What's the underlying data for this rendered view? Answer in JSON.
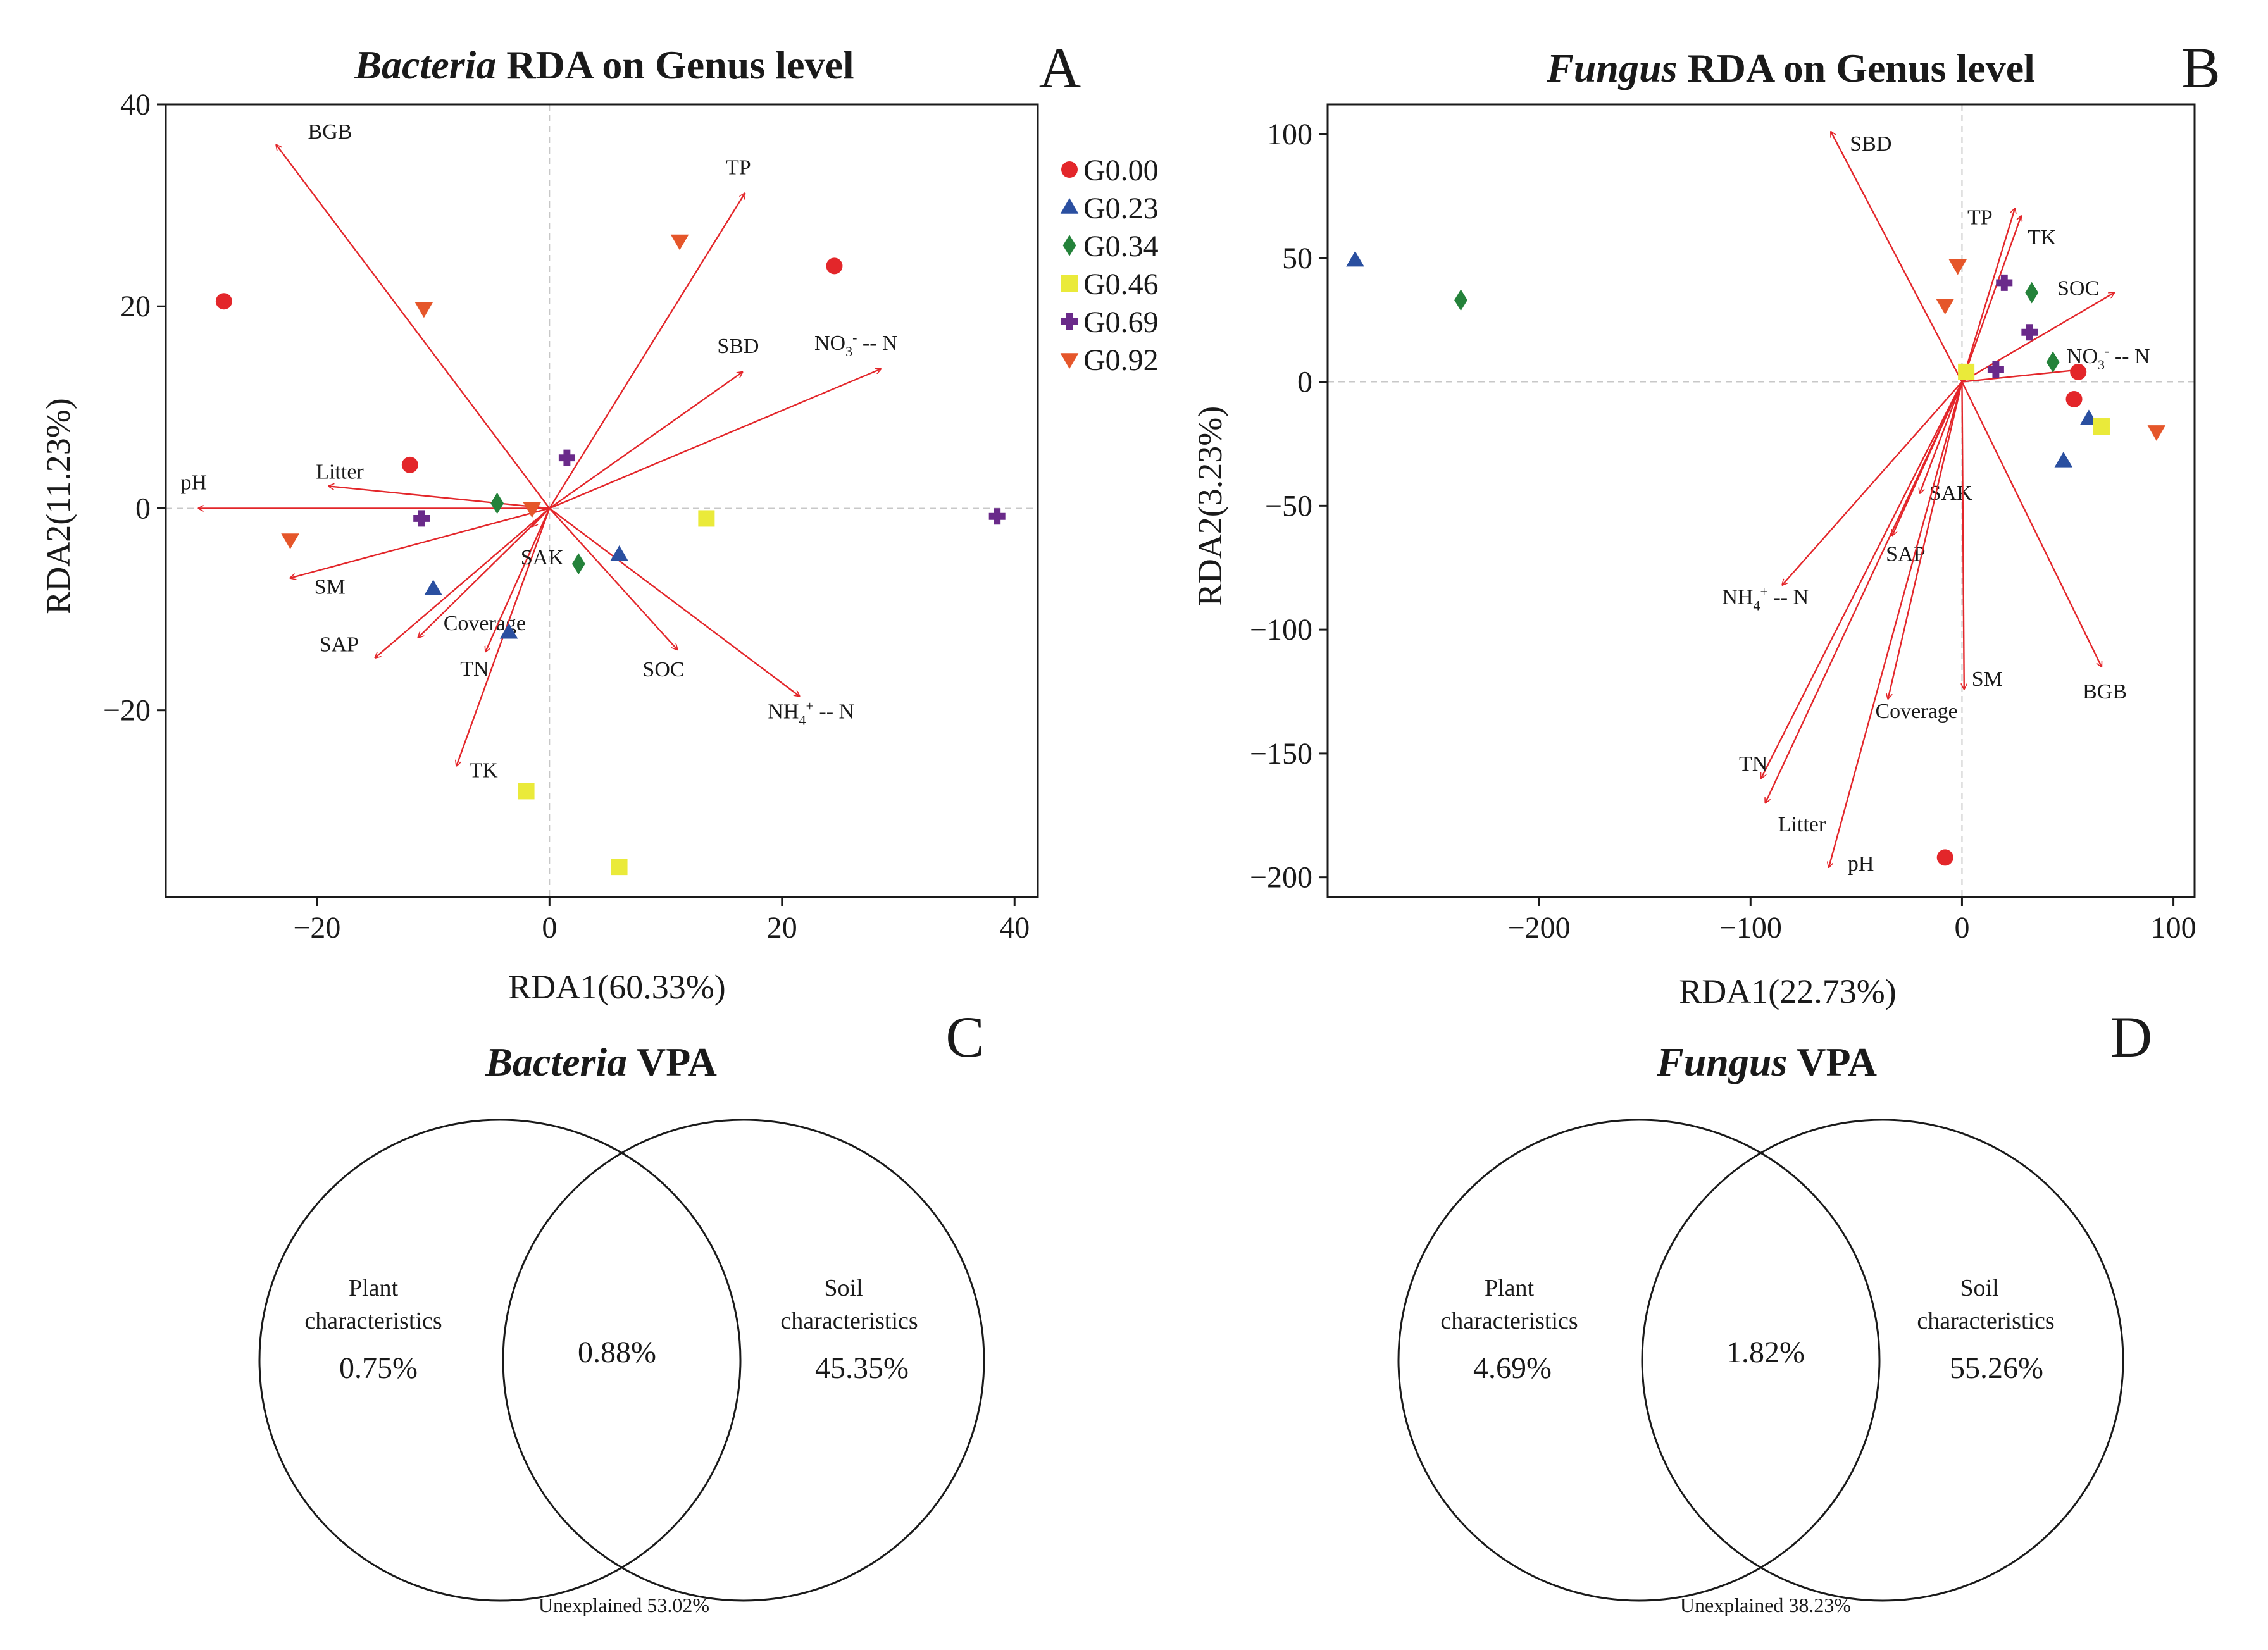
{
  "chart_data": [
    {
      "panel": "A",
      "type": "scatter",
      "title_italic": "Bacteria",
      "title_rest": " RDA on Genus level",
      "xlabel": "RDA1(60.33%)",
      "ylabel": "RDA2(11.23%)",
      "xlim": [
        -33,
        42
      ],
      "ylim": [
        -38.5,
        40
      ],
      "xticks": [
        -20,
        0,
        20,
        40
      ],
      "yticks": [
        -20,
        0,
        20,
        40
      ],
      "xtick_labels": [
        "−20",
        "0",
        "20",
        "40"
      ],
      "ytick_labels": [
        "−20",
        "0",
        "20",
        "40"
      ],
      "legend": {
        "placement": "right",
        "entries": [
          {
            "group": "G0.00",
            "label": "G0.00",
            "shape": "circle",
            "color": "#e3262a"
          },
          {
            "group": "G0.23",
            "label": "G0.23",
            "shape": "triangle-up",
            "color": "#2a4fa0"
          },
          {
            "group": "G0.34",
            "label": "G0.34",
            "shape": "diamond",
            "color": "#24823a"
          },
          {
            "group": "G0.46",
            "label": "G0.46",
            "shape": "square",
            "color": "#eaea3a"
          },
          {
            "group": "G0.69",
            "label": "G0.69",
            "shape": "plus",
            "color": "#6a2a8a"
          },
          {
            "group": "G0.92",
            "label": "G0.92",
            "shape": "triangle-down",
            "color": "#e5562a"
          }
        ]
      },
      "points": [
        {
          "group": "G0.00",
          "x": -28,
          "y": 20.5
        },
        {
          "group": "G0.00",
          "x": 24.5,
          "y": 24
        },
        {
          "group": "G0.00",
          "x": -12,
          "y": 4.3
        },
        {
          "group": "G0.23",
          "x": -10,
          "y": -8
        },
        {
          "group": "G0.23",
          "x": -3.5,
          "y": -12.3
        },
        {
          "group": "G0.23",
          "x": 6,
          "y": -4.6
        },
        {
          "group": "G0.34",
          "x": -4.5,
          "y": 0.5
        },
        {
          "group": "G0.34",
          "x": 2.5,
          "y": -5.5
        },
        {
          "group": "G0.46",
          "x": 13.5,
          "y": -1
        },
        {
          "group": "G0.46",
          "x": -2,
          "y": -28
        },
        {
          "group": "G0.46",
          "x": 6,
          "y": -35.5
        },
        {
          "group": "G0.69",
          "x": 1.5,
          "y": 5
        },
        {
          "group": "G0.69",
          "x": -11,
          "y": -1
        },
        {
          "group": "G0.69",
          "x": 38.5,
          "y": -0.8
        },
        {
          "group": "G0.92",
          "x": -10.8,
          "y": 19.8
        },
        {
          "group": "G0.92",
          "x": 11.2,
          "y": 26.5
        },
        {
          "group": "G0.92",
          "x": -22.3,
          "y": -3.1
        },
        {
          "group": "G0.92",
          "x": -1.5,
          "y": 0
        }
      ],
      "vectors": [
        {
          "label": "BGB",
          "x": -23.5,
          "y": 36
        },
        {
          "label": "TP",
          "x": 16.8,
          "y": 31.2
        },
        {
          "label": "SBD",
          "x": 16.6,
          "y": 13.5
        },
        {
          "label": "NO3- -- N",
          "label_main": "NO",
          "label_sub": "3",
          "label_sup": "-",
          "label_tail": " -- N",
          "x": 28.5,
          "y": 13.8
        },
        {
          "label": "Litter",
          "x": -19,
          "y": 2.2
        },
        {
          "label": "pH",
          "x": -30.2,
          "y": 0
        },
        {
          "label": "SM",
          "x": -22.3,
          "y": -6.9
        },
        {
          "label": "SAP",
          "x": -15,
          "y": -14.8
        },
        {
          "label": "Coverage",
          "x": -11.3,
          "y": -12.8
        },
        {
          "label": "TN",
          "x": -5.5,
          "y": -14.2
        },
        {
          "label": "TK",
          "x": -8,
          "y": -25.5
        },
        {
          "label": "SAK",
          "x": -1.5,
          "y": -1.8
        },
        {
          "label": "SOC",
          "x": 11,
          "y": -14
        },
        {
          "label": "NH4+ -- N",
          "label_main": "NH",
          "label_sub": "4",
          "label_sup": "+",
          "label_tail": " -- N",
          "x": 21.5,
          "y": -18.6
        }
      ]
    },
    {
      "panel": "B",
      "type": "scatter",
      "title_italic": "Fungus",
      "title_rest": " RDA on Genus level",
      "xlabel": "RDA1(22.73%)",
      "ylabel": "RDA2(3.23%)",
      "xlim": [
        -300,
        110
      ],
      "ylim": [
        -208,
        112
      ],
      "xticks": [
        -200,
        -100,
        0,
        100
      ],
      "yticks": [
        -200,
        -150,
        -100,
        -50,
        0,
        50,
        100
      ],
      "xtick_labels": [
        "−200",
        "−100",
        "0",
        "100"
      ],
      "ytick_labels": [
        "−200",
        "−150",
        "−100",
        "−50",
        "0",
        "50",
        "100"
      ],
      "points": [
        {
          "group": "G0.23",
          "x": -287,
          "y": 49
        },
        {
          "group": "G0.34",
          "x": -237,
          "y": 33
        },
        {
          "group": "G0.00",
          "x": -8,
          "y": -192
        },
        {
          "group": "G0.00",
          "x": 55,
          "y": 4
        },
        {
          "group": "G0.00",
          "x": 53,
          "y": -7
        },
        {
          "group": "G0.23",
          "x": 60,
          "y": -15
        },
        {
          "group": "G0.23",
          "x": 48,
          "y": -32
        },
        {
          "group": "G0.34",
          "x": 33,
          "y": 36
        },
        {
          "group": "G0.34",
          "x": 43,
          "y": 8
        },
        {
          "group": "G0.46",
          "x": 66,
          "y": -18
        },
        {
          "group": "G0.46",
          "x": 2,
          "y": 4
        },
        {
          "group": "G0.69",
          "x": 20,
          "y": 40
        },
        {
          "group": "G0.69",
          "x": 32,
          "y": 20
        },
        {
          "group": "G0.69",
          "x": 16,
          "y": 5
        },
        {
          "group": "G0.92",
          "x": -2,
          "y": 47
        },
        {
          "group": "G0.92",
          "x": -8,
          "y": 31
        },
        {
          "group": "G0.92",
          "x": 92,
          "y": -20
        }
      ],
      "vectors": [
        {
          "label": "SBD",
          "x": -62,
          "y": 101
        },
        {
          "label": "TP",
          "x": 25,
          "y": 70
        },
        {
          "label": "TK",
          "x": 28,
          "y": 67
        },
        {
          "label": "SOC",
          "x": 72,
          "y": 36
        },
        {
          "label": "NO3- -- N",
          "label_main": "NO",
          "label_sub": "3",
          "label_sup": "-",
          "label_tail": " -- N",
          "x": 57,
          "y": 5
        },
        {
          "label": "SAK",
          "x": -20,
          "y": -45
        },
        {
          "label": "SAP",
          "x": -33,
          "y": -62
        },
        {
          "label": "NH4+ -- N",
          "label_main": "NH",
          "label_sub": "4",
          "label_sup": "+",
          "label_tail": " -- N",
          "x": -85,
          "y": -82
        },
        {
          "label": "SM",
          "x": 1,
          "y": -124
        },
        {
          "label": "Coverage",
          "x": -35,
          "y": -128
        },
        {
          "label": "BGB",
          "x": 66,
          "y": -115
        },
        {
          "label": "TN",
          "x": -95,
          "y": -160
        },
        {
          "label": "Litter",
          "x": -93,
          "y": -170
        },
        {
          "label": "pH",
          "x": -63,
          "y": -196
        }
      ]
    }
  ],
  "panel_letters": {
    "A": "A",
    "B": "B",
    "C": "C",
    "D": "D"
  },
  "venn": [
    {
      "panel": "C",
      "title_italic": "Bacteria",
      "title_rest": " VPA",
      "plant_label_1": "Plant",
      "plant_label_2": "characteristics",
      "plant_pct": "0.75%",
      "shared_pct": "0.88%",
      "soil_label_1": "Soil",
      "soil_label_2": "characteristics",
      "soil_pct": "45.35%",
      "unexplained": "Unexplained 53.02%"
    },
    {
      "panel": "D",
      "title_italic": "Fungus",
      "title_rest": " VPA",
      "plant_label_1": "Plant",
      "plant_label_2": "characteristics",
      "plant_pct": "4.69%",
      "shared_pct": "1.82%",
      "soil_label_1": "Soil",
      "soil_label_2": "characteristics",
      "soil_pct": "55.26%",
      "unexplained": "Unexplained 38.23%"
    }
  ]
}
